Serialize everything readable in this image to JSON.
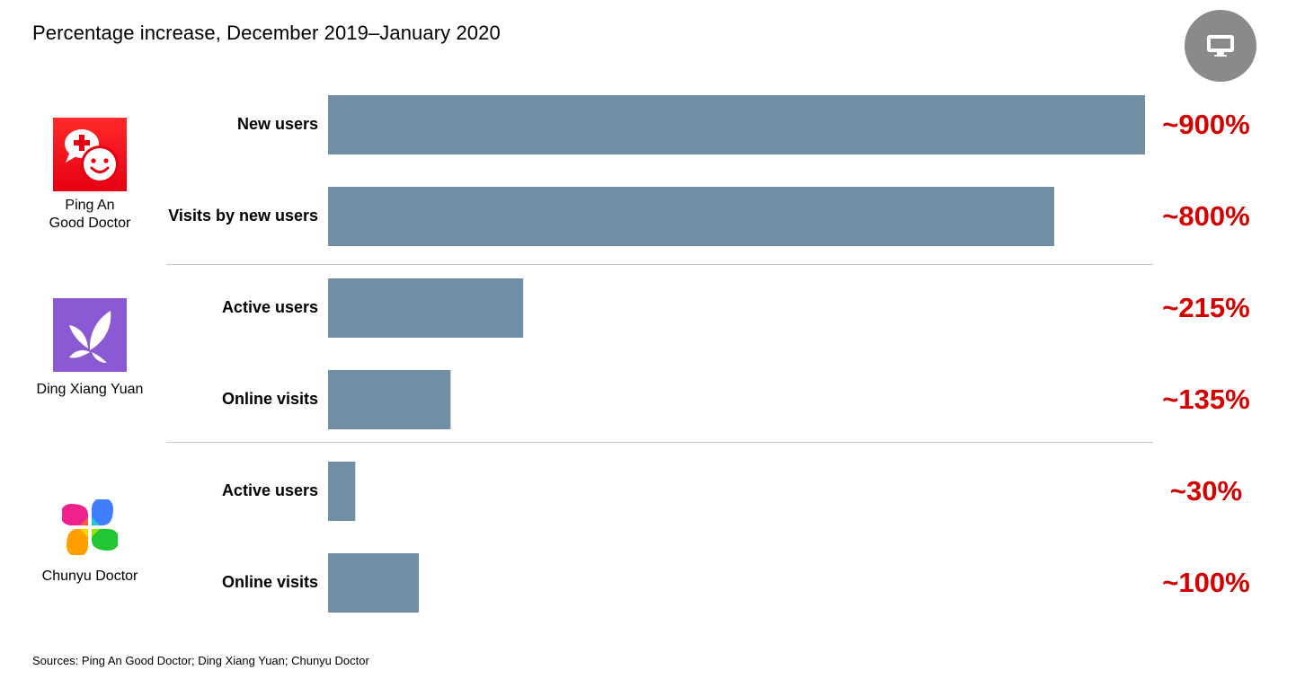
{
  "chart_data": {
    "type": "bar",
    "orientation": "horizontal",
    "title": "Percentage increase, December 2019–January 2020",
    "groups": [
      {
        "app": "Ping An\nGood Doctor",
        "categories": [
          "New users",
          "Visits by new users"
        ],
        "values": [
          900,
          800
        ],
        "value_labels": [
          "~900%",
          "~800%"
        ]
      },
      {
        "app": "Ding Xiang Yuan",
        "categories": [
          "Active users",
          "Online visits"
        ],
        "values": [
          215,
          135
        ],
        "value_labels": [
          "~215%",
          "~135%"
        ]
      },
      {
        "app": "Chunyu Doctor",
        "categories": [
          "Active users",
          "Online visits"
        ],
        "values": [
          30,
          100
        ],
        "value_labels": [
          "~30%",
          "~100%"
        ]
      }
    ],
    "xlim": [
      0,
      900
    ],
    "grid": false,
    "bar_color": "#708FA4",
    "value_label_color": "#D40000",
    "source": "Sources: Ping An Good Doctor; Ding Xiang Yuan; Chunyu Doctor"
  },
  "colors": {
    "divider": "#C8C8C8",
    "present_button": "#8A8A8A"
  },
  "icons": {
    "present_button": "monitor-icon",
    "ping_an_logo": "ping-an-good-doctor-logo",
    "ding_xiang_logo": "ding-xiang-yuan-logo",
    "chunyu_logo": "chunyu-doctor-logo"
  }
}
